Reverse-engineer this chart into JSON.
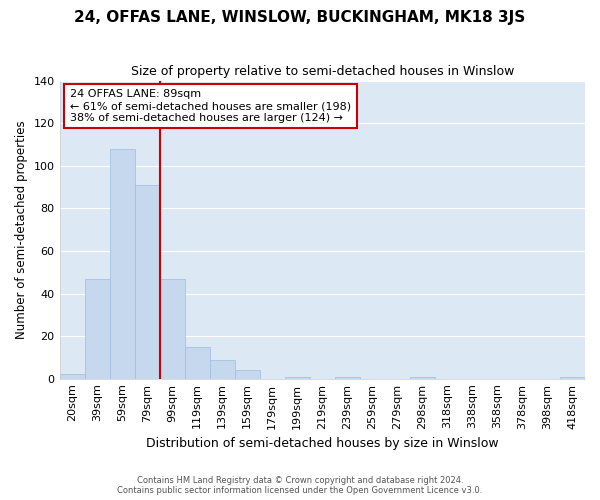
{
  "title": "24, OFFAS LANE, WINSLOW, BUCKINGHAM, MK18 3JS",
  "subtitle": "Size of property relative to semi-detached houses in Winslow",
  "xlabel": "Distribution of semi-detached houses by size in Winslow",
  "ylabel": "Number of semi-detached properties",
  "categories": [
    "20sqm",
    "39sqm",
    "59sqm",
    "79sqm",
    "99sqm",
    "119sqm",
    "139sqm",
    "159sqm",
    "179sqm",
    "199sqm",
    "219sqm",
    "239sqm",
    "259sqm",
    "279sqm",
    "298sqm",
    "318sqm",
    "338sqm",
    "358sqm",
    "378sqm",
    "398sqm",
    "418sqm"
  ],
  "values": [
    2,
    47,
    108,
    91,
    47,
    15,
    9,
    4,
    0,
    1,
    0,
    1,
    0,
    0,
    1,
    0,
    0,
    0,
    0,
    0,
    1
  ],
  "bar_color": "#c5d8ee",
  "bar_edge_color": "#9dbde0",
  "vline_color": "#cc0000",
  "box_edge_color": "#cc0000",
  "property_label": "24 OFFAS LANE: 89sqm",
  "annotation_line1": "← 61% of semi-detached houses are smaller (198)",
  "annotation_line2": "38% of semi-detached houses are larger (124) →",
  "ylim": [
    0,
    140
  ],
  "yticks": [
    0,
    20,
    40,
    60,
    80,
    100,
    120,
    140
  ],
  "grid_color": "#ffffff",
  "bg_color": "#dce9f5",
  "footer_line1": "Contains HM Land Registry data © Crown copyright and database right 2024.",
  "footer_line2": "Contains public sector information licensed under the Open Government Licence v3.0.",
  "vline_position": 3.5
}
